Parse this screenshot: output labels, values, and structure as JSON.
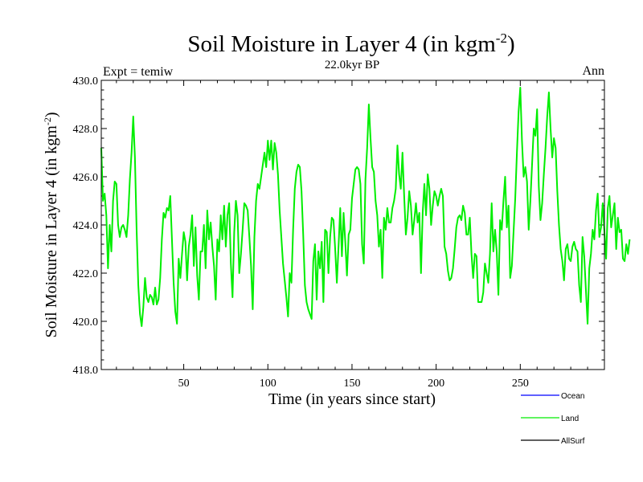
{
  "chart_data": {
    "type": "line",
    "title": "Soil Moisture in Layer 4 (in kgm",
    "title_sup": "-2",
    "title_close": ")",
    "subtitle": "22.0kyr BP",
    "left_label": "Expt = temiw",
    "right_label": "Ann",
    "xlabel": "Time (in years since start)",
    "ylabel": "Soil Moisture in Layer 4 (in kgm",
    "ylabel_sup": "-2",
    "ylabel_close": ")",
    "xlim": [
      1,
      300
    ],
    "ylim": [
      418.0,
      430.0
    ],
    "x_ticks": [
      50,
      100,
      150,
      200,
      250
    ],
    "x_tick_labels": [
      "50",
      "100",
      "150",
      "200",
      "250"
    ],
    "y_ticks": [
      418,
      420,
      422,
      424,
      426,
      428,
      430
    ],
    "y_tick_labels": [
      "418.0",
      "420.0",
      "422.0",
      "424.0",
      "426.0",
      "428.0",
      "430.0"
    ],
    "legend": [
      {
        "name": "Ocean",
        "color": "#0000ff"
      },
      {
        "name": "Land",
        "color": "#00ee00"
      },
      {
        "name": "AllSurf",
        "color": "#000000"
      }
    ],
    "legend_placement": "bottom-right",
    "series": [
      {
        "name": "Land",
        "color": "#00ee00",
        "x_start": 1,
        "x_step": 1,
        "values": [
          427.2,
          425.0,
          425.3,
          424.4,
          422.2,
          424.0,
          422.9,
          425.0,
          425.8,
          425.7,
          424.0,
          423.5,
          423.9,
          424.0,
          423.8,
          423.5,
          424.4,
          425.9,
          427.0,
          428.5,
          426.8,
          423.8,
          421.5,
          420.3,
          419.8,
          420.6,
          421.8,
          421.0,
          420.8,
          421.1,
          421.0,
          420.7,
          421.4,
          420.7,
          420.9,
          421.8,
          423.4,
          424.5,
          424.3,
          424.7,
          424.6,
          425.2,
          423.4,
          421.6,
          420.4,
          419.9,
          422.6,
          421.8,
          422.8,
          423.7,
          423.3,
          421.7,
          423.1,
          423.6,
          424.4,
          422.3,
          423.9,
          421.9,
          420.9,
          422.9,
          422.9,
          424.0,
          422.2,
          424.6,
          423.4,
          424.1,
          423.1,
          422.3,
          420.9,
          423.4,
          422.9,
          424.4,
          423.4,
          424.8,
          423.1,
          424.4,
          424.9,
          422.4,
          421.0,
          423.7,
          425.0,
          424.4,
          422.0,
          422.8,
          423.8,
          424.9,
          424.8,
          424.6,
          423.5,
          422.3,
          420.5,
          423.5,
          425.0,
          425.7,
          425.5,
          426.0,
          426.5,
          427.0,
          426.4,
          427.5,
          426.7,
          427.5,
          426.3,
          427.4,
          427.0,
          426.1,
          424.6,
          423.5,
          422.4,
          421.7,
          421.0,
          420.2,
          422.0,
          421.6,
          423.8,
          425.5,
          426.2,
          426.5,
          426.4,
          425.4,
          423.6,
          421.5,
          420.8,
          420.5,
          420.3,
          420.1,
          422.5,
          423.2,
          420.9,
          422.9,
          422.2,
          423.3,
          420.8,
          423.8,
          423.7,
          422.0,
          423.5,
          424.3,
          424.2,
          423.0,
          421.6,
          423.1,
          424.7,
          422.7,
          424.5,
          423.3,
          421.9,
          423.6,
          423.8,
          425.1,
          425.7,
          426.3,
          426.4,
          426.3,
          425.7,
          423.2,
          422.4,
          425.9,
          427.2,
          429.0,
          427.6,
          426.4,
          426.2,
          425.0,
          424.4,
          423.1,
          423.8,
          421.8,
          424.3,
          423.8,
          424.7,
          424.1,
          424.1,
          424.7,
          425.0,
          425.5,
          427.3,
          426.1,
          425.5,
          427.0,
          425.2,
          423.6,
          424.3,
          425.4,
          424.8,
          423.6,
          424.2,
          424.9,
          424.1,
          424.5,
          422.0,
          424.5,
          425.7,
          424.4,
          426.1,
          425.5,
          424.0,
          424.8,
          425.4,
          425.2,
          424.8,
          425.2,
          425.5,
          425.2,
          423.1,
          422.8,
          422.1,
          421.7,
          421.8,
          422.2,
          423.0,
          423.9,
          424.3,
          424.4,
          424.2,
          424.8,
          424.5,
          423.6,
          423.6,
          424.3,
          422.8,
          421.8,
          422.8,
          422.7,
          420.8,
          420.8,
          420.8,
          421.2,
          422.4,
          422.0,
          421.6,
          422.8,
          424.9,
          422.9,
          423.8,
          422.9,
          421.1,
          424.2,
          423.8,
          425.0,
          426.0,
          423.9,
          424.8,
          421.8,
          422.3,
          423.7,
          425.1,
          427.0,
          428.7,
          429.7,
          427.5,
          426.0,
          426.4,
          425.8,
          423.8,
          425.0,
          426.5,
          428.0,
          427.7,
          428.8,
          425.6,
          424.2,
          424.9,
          426.1,
          427.2,
          428.5,
          429.5,
          428.0,
          426.8,
          427.6,
          427.2,
          425.4,
          424.0,
          423.0,
          422.5,
          421.7,
          423.0,
          423.2,
          422.6,
          422.5,
          423.1,
          423.3,
          423.0,
          422.9,
          421.5,
          420.8,
          423.5,
          422.7,
          421.3,
          419.9,
          422.2,
          422.8,
          423.8,
          423.4,
          424.6,
          425.3,
          423.5,
          423.9,
          424.9,
          423.7,
          422.6,
          424.7,
          425.2,
          423.9,
          424.4,
          424.9,
          423.0,
          424.3,
          423.7,
          423.8,
          422.6,
          422.5,
          423.2,
          422.8,
          423.4
        ]
      }
    ]
  }
}
